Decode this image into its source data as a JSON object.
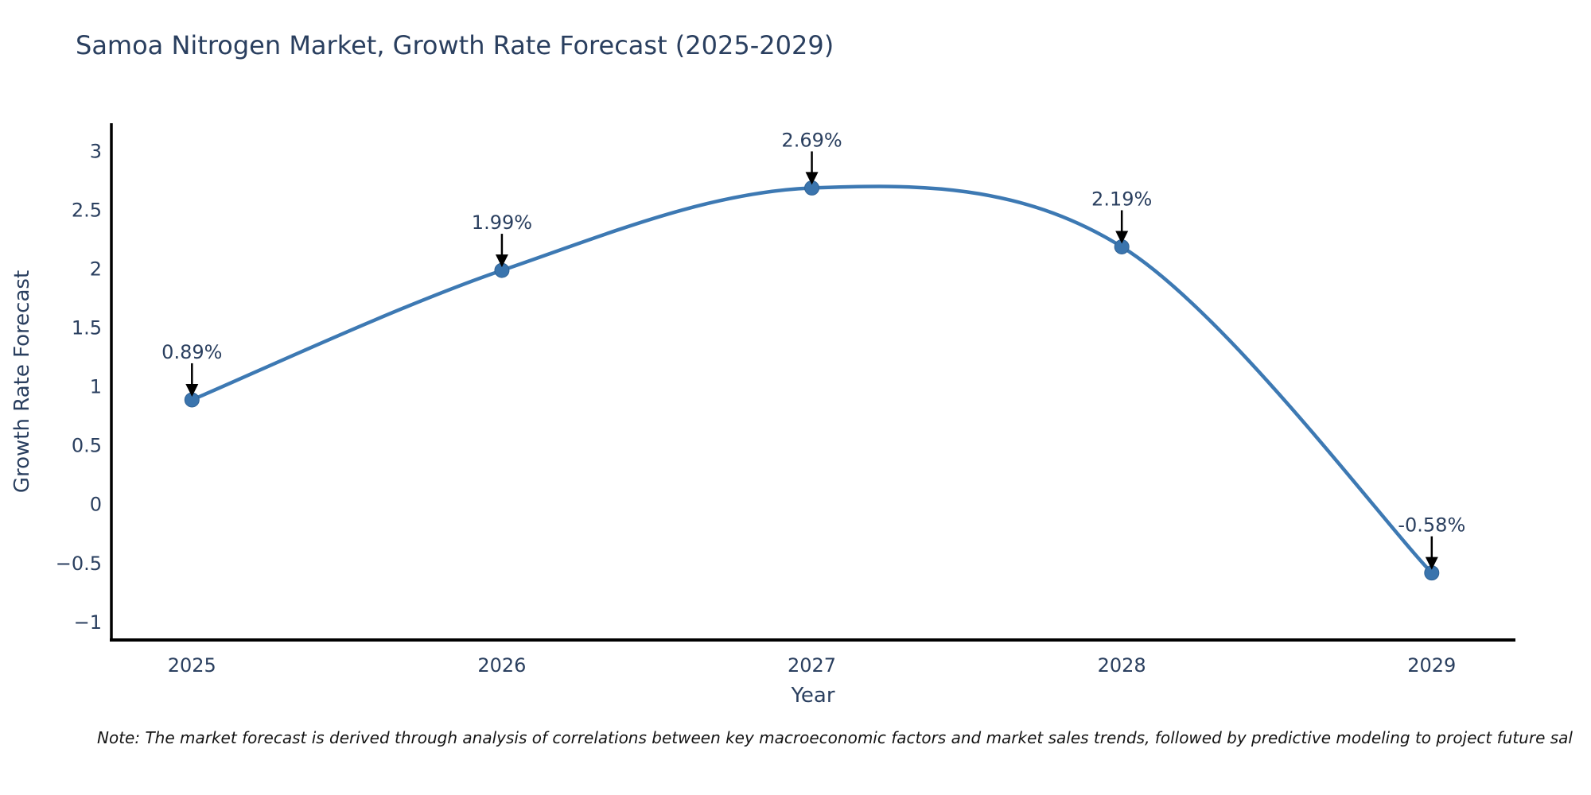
{
  "page": {
    "title": "Samoa Nitrogen Market, Growth Rate Forecast (2025-2029)",
    "note": "Note: The market forecast is derived through analysis of correlations between key macroeconomic factors and market sales trends, followed by predictive modeling to project future sal"
  },
  "chart_data": {
    "type": "line",
    "title": "Samoa Nitrogen Market, Growth Rate Forecast (2025-2029)",
    "xlabel": "Year",
    "ylabel": "Growth Rate Forecast",
    "x": [
      2025,
      2026,
      2027,
      2028,
      2029
    ],
    "series": [
      {
        "name": "Growth Rate Forecast",
        "values": [
          0.89,
          1.99,
          2.69,
          2.19,
          -0.58
        ]
      }
    ],
    "point_labels": [
      "0.89%",
      "1.99%",
      "2.69%",
      "2.19%",
      "-0.58%"
    ],
    "xtick_labels": [
      "2025",
      "2026",
      "2027",
      "2028",
      "2029"
    ],
    "ytick_values": [
      3,
      2.5,
      2,
      1.5,
      1,
      0.5,
      0,
      -0.5,
      -1
    ],
    "ytick_labels": [
      "3",
      "2.5",
      "2",
      "1.5",
      "1",
      "0.5",
      "0",
      "−0.5",
      "−1"
    ],
    "xlim": [
      2024.74,
      2029.27
    ],
    "ylim": [
      -1.15,
      3.24
    ],
    "line_shape": "spline",
    "grid": false,
    "legend": false,
    "markers": true,
    "colors": {
      "line": "#3d79b3",
      "marker": "#3a74ad",
      "marker_edge": "#2f6295",
      "axis": "#000000",
      "text": "#2a3f5f",
      "arrow": "#000000",
      "background": "#ffffff"
    }
  }
}
